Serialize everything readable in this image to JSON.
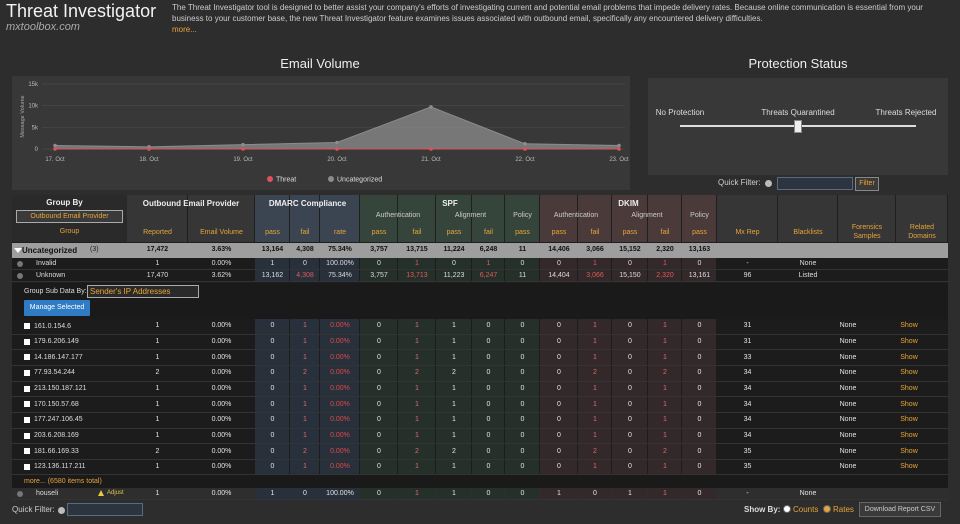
{
  "header": {
    "title": "Threat Investigator",
    "site": "mxtoolbox.com",
    "description": "The Threat Investigator tool is designed to better assist your company's efforts of investigating current and potential email problems that impede delivery rates. Because online communication is essential from your business to your customer base, the new Threat Investigator feature examines issues associated with outbound email, specifically any encountered delivery difficulties.",
    "more": "more..."
  },
  "email_volume": {
    "type": "area",
    "title": "Email Volume",
    "y_label": "Message Volume",
    "categories": [
      "17. Oct",
      "18. Oct",
      "19. Oct",
      "20. Oct",
      "21. Oct",
      "22. Oct",
      "23. Oct"
    ],
    "series": [
      {
        "name": "Threat",
        "color": "#e0505e",
        "values": [
          0,
          0,
          0,
          0,
          0,
          0,
          0
        ]
      },
      {
        "name": "Uncategorized",
        "color": "#8c8c8c",
        "values": [
          800,
          500,
          1000,
          1500,
          9700,
          1200,
          800
        ]
      }
    ],
    "ylim": [
      0,
      15000
    ],
    "yticks": [
      0,
      {
        "value": 5000,
        "label": "5k"
      },
      {
        "value": 10000,
        "label": "10k"
      },
      {
        "value": 15000,
        "label": "15k"
      }
    ],
    "grid": true
  },
  "protection_status": {
    "title": "Protection Status",
    "options": [
      "No Protection",
      "Threats Quarantined",
      "Threats Rejected"
    ]
  },
  "quick_filter": {
    "label": "Quick Filter:",
    "button": "Filter"
  },
  "table": {
    "group_by": "Group By",
    "group_by_select": "Outbound Email Provider",
    "group_label": "Group",
    "provider_header": "Outbound Email Provider",
    "dmarc": "DMARC Compliance",
    "spf": "SPF",
    "dkim": "DKIM",
    "spf_subs": [
      "Authentication",
      "Alignment",
      "Policy"
    ],
    "dkim_subs": [
      "Authentication",
      "Alignment",
      "Policy"
    ],
    "columns": [
      "Reported",
      "Email Volume",
      "pass",
      "fail",
      "rate",
      "pass",
      "fail",
      "pass",
      "fail",
      "pass",
      "pass",
      "fail",
      "pass",
      "fail",
      "pass",
      "Mx Rep",
      "Blacklists",
      "Forensics Samples",
      "Related Domains"
    ],
    "group_rows": [
      {
        "label": "Uncategorized",
        "count": "(3)",
        "cells": [
          "17,472",
          "3.63%",
          "13,164",
          "4,308",
          "75.34%",
          "3,757",
          "13,715",
          "11,224",
          "6,248",
          "11",
          "14,406",
          "3,066",
          "15,152",
          "2,320",
          "13,163",
          null,
          null,
          null,
          null
        ]
      },
      {
        "label": "Invalid",
        "cells": [
          "1",
          "0.00%",
          "1",
          "0",
          "100.00%",
          "0",
          "1",
          "0",
          "1",
          "0",
          "0",
          "1",
          "0",
          "1",
          "0",
          "-",
          "None",
          null,
          null
        ]
      },
      {
        "label": "Unknown",
        "cells": [
          "17,470",
          "3.62%",
          "13,162",
          "4,308",
          "75.34%",
          "3,757",
          "13,713",
          "11,223",
          "6,247",
          "11",
          "14,404",
          "3,066",
          "15,150",
          "2,320",
          "13,161",
          "96",
          "Listed",
          null,
          null
        ]
      }
    ],
    "sub_group_label": "Group Sub Data By:",
    "sub_group_select": "Sender's IP Addresses",
    "manage": "Manage Selected",
    "ip_rows": [
      {
        "label": "161.0.154.6",
        "cells": [
          "1",
          "0.00%",
          "0",
          "1",
          "0.00%",
          "0",
          "1",
          "1",
          "0",
          "0",
          "0",
          "1",
          "0",
          "1",
          "0",
          "31",
          "None",
          null,
          "Show"
        ]
      },
      {
        "label": "179.6.206.149",
        "cells": [
          "1",
          "0.00%",
          "0",
          "1",
          "0.00%",
          "0",
          "1",
          "1",
          "0",
          "0",
          "0",
          "1",
          "0",
          "1",
          "0",
          "31",
          "None",
          null,
          "Show"
        ]
      },
      {
        "label": "14.186.147.177",
        "cells": [
          "1",
          "0.00%",
          "0",
          "1",
          "0.00%",
          "0",
          "1",
          "1",
          "0",
          "0",
          "0",
          "1",
          "0",
          "1",
          "0",
          "33",
          "None",
          null,
          "Show"
        ]
      },
      {
        "label": "77.93.54.244",
        "cells": [
          "2",
          "0.00%",
          "0",
          "2",
          "0.00%",
          "0",
          "2",
          "2",
          "0",
          "0",
          "0",
          "2",
          "0",
          "2",
          "0",
          "34",
          "None",
          null,
          "Show"
        ]
      },
      {
        "label": "213.150.187.121",
        "cells": [
          "1",
          "0.00%",
          "0",
          "1",
          "0.00%",
          "0",
          "1",
          "1",
          "0",
          "0",
          "0",
          "1",
          "0",
          "1",
          "0",
          "34",
          "None",
          null,
          "Show"
        ]
      },
      {
        "label": "170.150.57.68",
        "cells": [
          "1",
          "0.00%",
          "0",
          "1",
          "0.00%",
          "0",
          "1",
          "1",
          "0",
          "0",
          "0",
          "1",
          "0",
          "1",
          "0",
          "34",
          "None",
          null,
          "Show"
        ]
      },
      {
        "label": "177.247.106.45",
        "cells": [
          "1",
          "0.00%",
          "0",
          "1",
          "0.00%",
          "0",
          "1",
          "1",
          "0",
          "0",
          "0",
          "1",
          "0",
          "1",
          "0",
          "34",
          "None",
          null,
          "Show"
        ]
      },
      {
        "label": "203.6.208.169",
        "cells": [
          "1",
          "0.00%",
          "0",
          "1",
          "0.00%",
          "0",
          "1",
          "1",
          "0",
          "0",
          "0",
          "1",
          "0",
          "1",
          "0",
          "34",
          "None",
          null,
          "Show"
        ]
      },
      {
        "label": "181.66.169.33",
        "cells": [
          "2",
          "0.00%",
          "0",
          "2",
          "0.00%",
          "0",
          "2",
          "2",
          "0",
          "0",
          "0",
          "2",
          "0",
          "2",
          "0",
          "35",
          "None",
          null,
          "Show"
        ]
      },
      {
        "label": "123.136.117.211",
        "cells": [
          "1",
          "0.00%",
          "0",
          "1",
          "0.00%",
          "0",
          "1",
          "1",
          "0",
          "0",
          "0",
          "1",
          "0",
          "1",
          "0",
          "35",
          "None",
          null,
          "Show"
        ]
      }
    ],
    "more_items": "more... (6580 items total)",
    "last_row": {
      "label": "houseli",
      "adjust": "Adjust",
      "cells": [
        "1",
        "0.00%",
        "1",
        "0",
        "100.00%",
        "0",
        "1",
        "1",
        "0",
        "0",
        "1",
        "0",
        "1",
        "1",
        "0",
        "-",
        "None",
        null,
        null
      ]
    }
  },
  "footer": {
    "quick_filter": "Quick Filter:",
    "show_by": "Show By:",
    "counts": "Counts",
    "rates": "Rates",
    "download": "Download Report CSV"
  }
}
